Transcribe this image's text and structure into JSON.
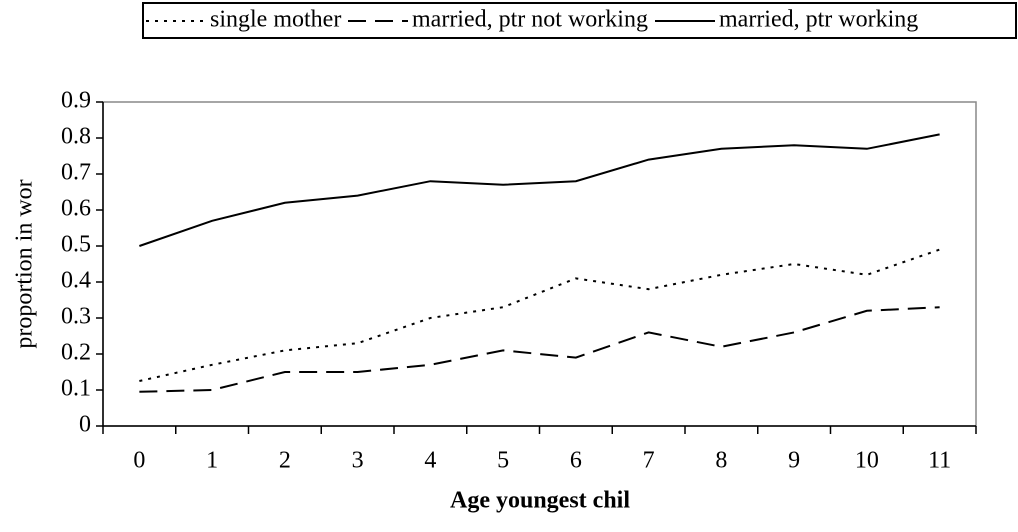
{
  "chart_data": {
    "type": "line",
    "x_label": "Age youngest chil",
    "y_label": "proportion in wor",
    "categories": [
      "0",
      "1",
      "2",
      "3",
      "4",
      "5",
      "6",
      "7",
      "8",
      "9",
      "10",
      "11"
    ],
    "series": [
      {
        "name": "single mother",
        "color": "#000000",
        "dash": "dotted",
        "values": [
          0.125,
          0.17,
          0.21,
          0.23,
          0.3,
          0.33,
          0.41,
          0.38,
          0.42,
          0.45,
          0.42,
          0.49
        ]
      },
      {
        "name": "married, ptr not working",
        "color": "#000000",
        "dash": "dashed",
        "values": [
          0.095,
          0.1,
          0.15,
          0.15,
          0.17,
          0.21,
          0.19,
          0.26,
          0.22,
          0.26,
          0.32,
          0.33
        ]
      },
      {
        "name": "married, ptr working",
        "color": "#000000",
        "dash": "solid",
        "values": [
          0.5,
          0.57,
          0.62,
          0.64,
          0.68,
          0.67,
          0.68,
          0.74,
          0.77,
          0.78,
          0.77,
          0.81
        ]
      }
    ],
    "ylim": [
      0,
      0.9
    ],
    "yticks": [
      0,
      0.1,
      0.2,
      0.3,
      0.4,
      0.5,
      0.6,
      0.7,
      0.8,
      0.9
    ],
    "legend": "top",
    "grid": false
  }
}
